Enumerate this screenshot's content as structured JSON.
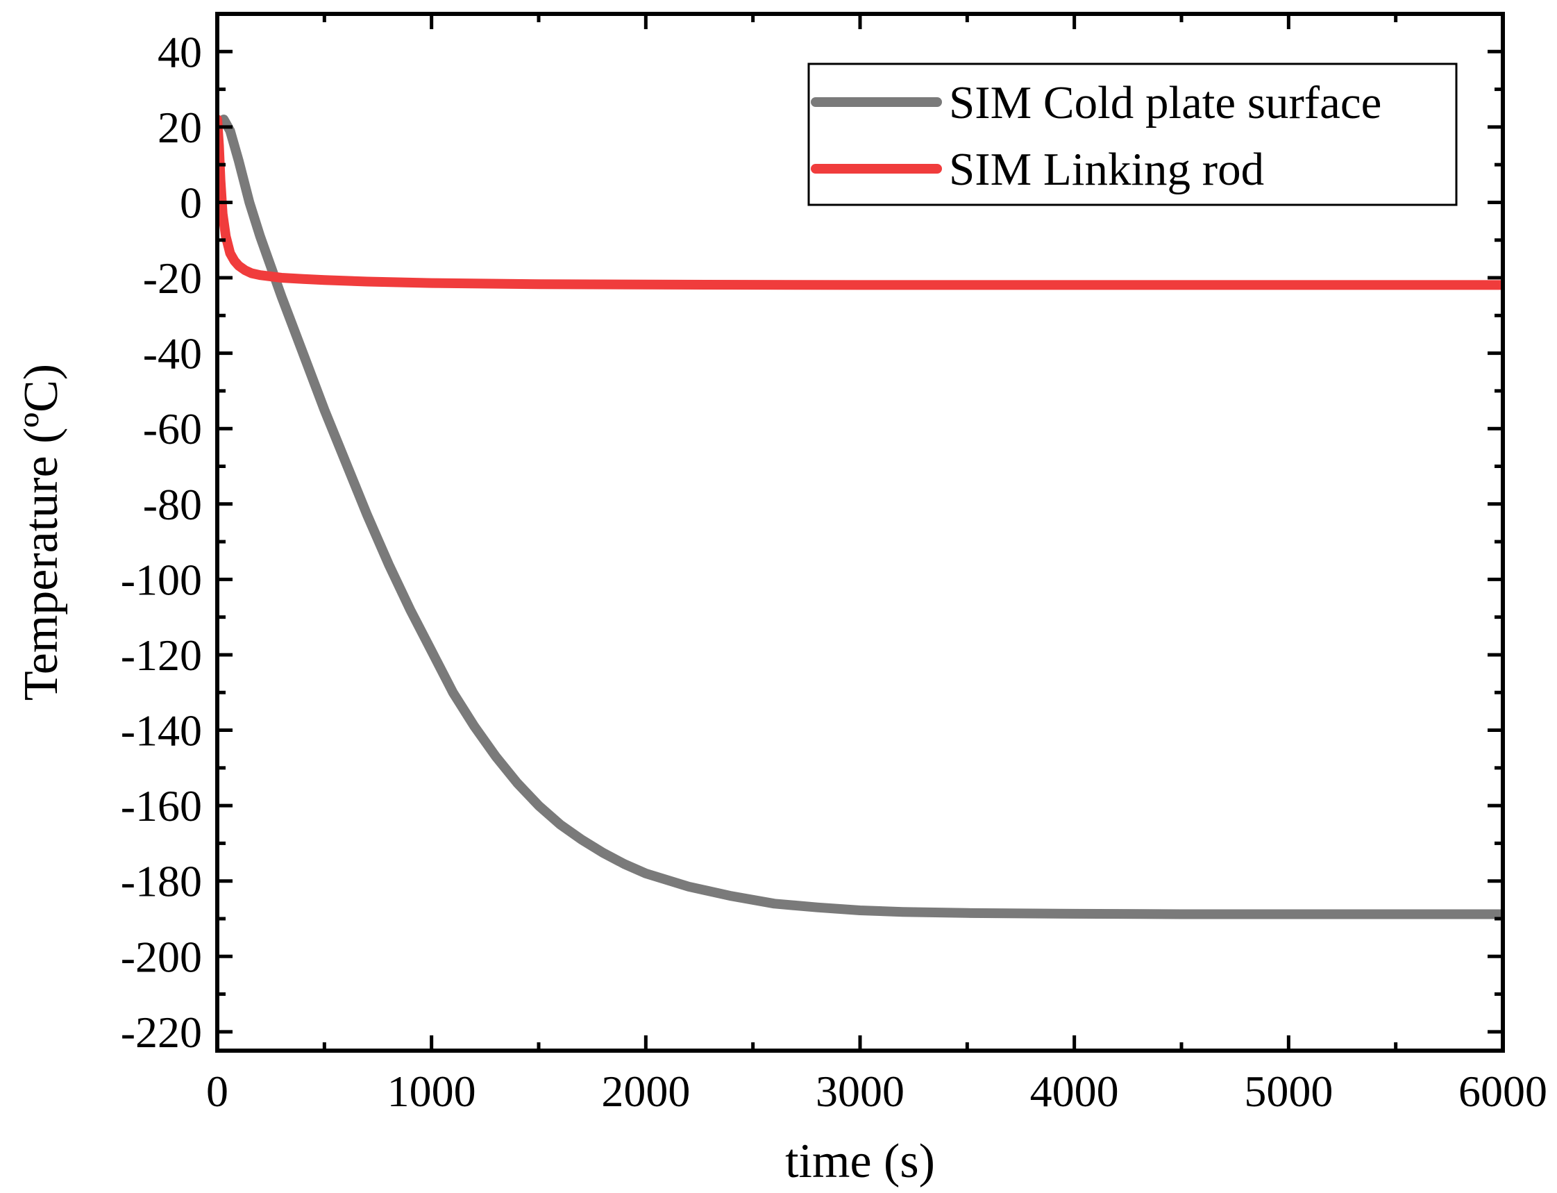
{
  "chart_data": {
    "type": "line",
    "title": "",
    "xlabel": "time (s)",
    "ylabel": "Temperature (ºC)",
    "xlim": [
      0,
      6000
    ],
    "ylim": [
      -225,
      50
    ],
    "xticks": [
      0,
      1000,
      2000,
      3000,
      4000,
      5000,
      6000
    ],
    "xtick_labels": [
      "0",
      "1000",
      "2000",
      "3000",
      "4000",
      "5000",
      "6000"
    ],
    "yticks": [
      40,
      20,
      0,
      -20,
      -40,
      -60,
      -80,
      -100,
      -120,
      -140,
      -160,
      -180,
      -200,
      -220
    ],
    "ytick_labels": [
      "40",
      "20",
      "0",
      "-20",
      "-40",
      "-60",
      "-80",
      "-100",
      "-120",
      "-140",
      "-160",
      "-180",
      "-200",
      "-220"
    ],
    "grid": false,
    "legend_position": "top-right",
    "series": [
      {
        "name": "SIM Cold plate surface",
        "color": "#7a7a7a",
        "x": [
          0,
          30,
          60,
          100,
          150,
          200,
          300,
          400,
          500,
          600,
          700,
          800,
          900,
          1000,
          1100,
          1200,
          1300,
          1400,
          1500,
          1600,
          1700,
          1800,
          1900,
          2000,
          2200,
          2400,
          2600,
          2800,
          3000,
          3200,
          3500,
          4000,
          4500,
          5000,
          5500,
          6000
        ],
        "values": [
          21,
          22,
          19,
          11,
          0,
          -9,
          -25,
          -40,
          -55,
          -69,
          -83,
          -96,
          -108,
          -119,
          -130,
          -139,
          -147,
          -154,
          -160,
          -165,
          -169,
          -172.5,
          -175.5,
          -178,
          -181.5,
          -184,
          -186,
          -187,
          -187.8,
          -188.2,
          -188.5,
          -188.7,
          -188.8,
          -188.8,
          -188.8,
          -188.8
        ]
      },
      {
        "name": "SIM Linking rod",
        "color": "#f03c3c",
        "x": [
          0,
          8,
          15,
          25,
          40,
          60,
          80,
          100,
          130,
          160,
          200,
          300,
          400,
          500,
          700,
          1000,
          1500,
          2000,
          3000,
          4000,
          5000,
          6000
        ],
        "values": [
          22,
          15,
          6,
          -3,
          -9,
          -13.5,
          -15.5,
          -16.8,
          -18,
          -18.8,
          -19.3,
          -20,
          -20.3,
          -20.6,
          -21,
          -21.4,
          -21.7,
          -21.8,
          -21.9,
          -21.9,
          -21.9,
          -21.9
        ]
      }
    ]
  }
}
